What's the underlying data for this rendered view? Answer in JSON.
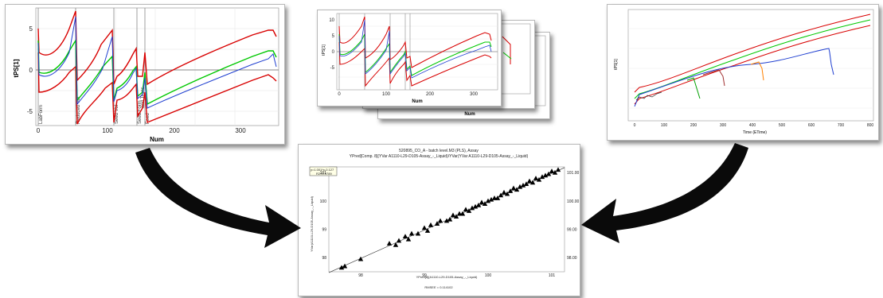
{
  "left_chart": {
    "ylabel": "tPS[1]",
    "xlabel": "Num",
    "yticks": [
      "5",
      "0",
      "-5"
    ],
    "xticks": [
      "0",
      "100",
      "200",
      "300"
    ],
    "phase_labels": [
      "LabForm",
      "Reduced Vol",
      "Seed Vol",
      "Seed Form",
      "and Trans",
      "Feed"
    ]
  },
  "stacked_chart": {
    "ylabel": "tPS[1]",
    "xlabel": "Num",
    "xlabel_back": "Num",
    "yticks": [
      "10",
      "5",
      "0",
      "-5"
    ],
    "xticks": [
      "0",
      "100",
      "200",
      "300"
    ]
  },
  "right_chart": {
    "ylabel": "tPS[1]",
    "xlabel": "Time (ETime)",
    "xticks": [
      "0",
      "100",
      "200",
      "300",
      "400",
      "500",
      "600",
      "700",
      "800"
    ]
  },
  "bottom_chart": {
    "title_line1": "520895_CO_A - batch level.M3 (PLS), Assay",
    "title_line2": "YPred[Comp. 8](YVar A1110-L29-D105-Assay_-_Liquid)/YVar(YVar A1110-L29-D105-Assay_-_Liquid)",
    "legend_line1": "y=1.001*x-0.127",
    "legend_line2": "R2=0.9789",
    "ylabel": "YVar(A1110-L29-D105-Assay_-_Liquid)",
    "xlabel": "YPred[8](A1110-L29-D105-Assay_-_Liquid)",
    "footer": "RMSEE = 0.114102",
    "yticks_left": [
      "101",
      "100",
      "99",
      "98"
    ],
    "yticks_right": [
      "101.00",
      "100.00",
      "99.00",
      "98.00"
    ],
    "xticks": [
      "98",
      "99",
      "100",
      "101"
    ],
    "x_range": [
      97.5,
      101.2
    ],
    "y_range": [
      97.5,
      101.2
    ]
  },
  "chart_data": {
    "type": "scatter",
    "title": "520895_CO_A - batch level.M3 (PLS), Assay",
    "xlabel": "YPred[8](A1110-L29-D105-Assay_-_Liquid)",
    "ylabel": "YVar(A1110-L29-D105-Assay_-_Liquid)",
    "xlim": [
      97.5,
      101.2
    ],
    "ylim": [
      97.5,
      101.2
    ],
    "fit": {
      "slope": 1.001,
      "intercept": -0.127,
      "r2": 0.9789
    },
    "x": [
      97.7,
      97.75,
      98.0,
      98.45,
      98.55,
      98.6,
      98.7,
      98.75,
      98.8,
      98.9,
      99.0,
      99.05,
      99.1,
      99.2,
      99.25,
      99.35,
      99.4,
      99.45,
      99.5,
      99.55,
      99.6,
      99.65,
      99.7,
      99.75,
      99.8,
      99.85,
      99.9,
      99.95,
      100.0,
      100.05,
      100.1,
      100.15,
      100.2,
      100.25,
      100.3,
      100.35,
      100.4,
      100.45,
      100.5,
      100.55,
      100.6,
      100.65,
      100.7,
      100.75,
      100.8,
      100.85,
      100.9,
      100.95,
      101.0,
      101.05,
      101.1
    ],
    "y": [
      97.65,
      97.7,
      97.95,
      98.5,
      98.45,
      98.6,
      98.75,
      98.65,
      98.85,
      98.85,
      99.05,
      98.95,
      99.15,
      99.2,
      99.3,
      99.3,
      99.35,
      99.5,
      99.45,
      99.55,
      99.55,
      99.7,
      99.65,
      99.75,
      99.8,
      99.85,
      99.95,
      99.9,
      100.0,
      100.05,
      100.1,
      100.1,
      100.2,
      100.3,
      100.25,
      100.35,
      100.45,
      100.4,
      100.5,
      100.55,
      100.6,
      100.7,
      100.65,
      100.8,
      100.75,
      100.85,
      100.9,
      100.95,
      101.05,
      101.0,
      101.1
    ]
  }
}
